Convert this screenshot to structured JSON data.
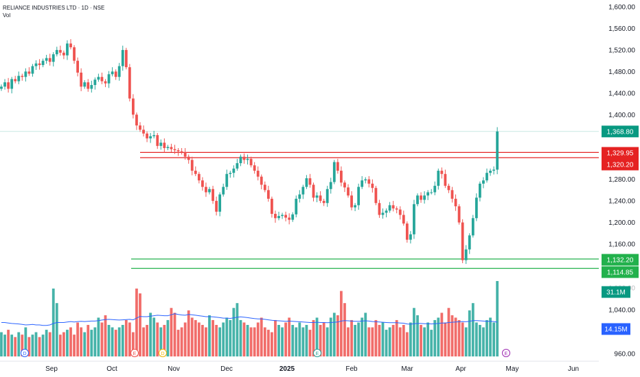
{
  "header": {
    "symbol_line": "RELIANCE INDUSTRIES LTD · 1D · NSE",
    "vol_label": "Vol"
  },
  "colors": {
    "up": "#26a69a",
    "down": "#ef5350",
    "resistance": "#e52222",
    "support": "#22b14c",
    "volume_ma": "#2962ff",
    "last_price": "#089981",
    "grid_text": "#131722"
  },
  "chart_data": {
    "type": "candlestick",
    "y_ticks": [
      "1,600.00",
      "1,560.00",
      "1,520.00",
      "1,480.00",
      "1,440.00",
      "1,400.00",
      "1,280.00",
      "1,240.00",
      "1,200.00",
      "1,160.00",
      "1,040.00",
      "960.00"
    ],
    "y_tick_values": [
      1600,
      1560,
      1520,
      1480,
      1440,
      1400,
      1280,
      1240,
      1200,
      1160,
      1040,
      960
    ],
    "x_labels": [
      "Sep",
      "Oct",
      "Nov",
      "Dec",
      "2025",
      "Feb",
      "Mar",
      "Apr",
      "May",
      "Jun"
    ],
    "price_labels": [
      {
        "text": "1,368.80",
        "value": 1368.8,
        "kind": "last"
      },
      {
        "text": "1,329.95",
        "value": 1329.95,
        "kind": "resistance"
      },
      {
        "text": "1,320.20",
        "value": 1320.2,
        "kind": "resistance"
      },
      {
        "text": "1,132.20",
        "value": 1132.2,
        "kind": "support"
      },
      {
        "text": "1,114.85",
        "value": 1114.85,
        "kind": "support"
      }
    ],
    "volume_labels": [
      {
        "text": "31.1M",
        "kind": "last_volume"
      },
      {
        "text": "14.15M",
        "kind": "volume_ma"
      }
    ],
    "partially_hidden_tick": "1,080.00",
    "event_markers": [
      "D",
      "E",
      "D",
      "E",
      "E",
      "E"
    ],
    "closes": [
      1452,
      1460,
      1448,
      1466,
      1462,
      1472,
      1470,
      1480,
      1476,
      1490,
      1495,
      1492,
      1500,
      1505,
      1498,
      1512,
      1520,
      1515,
      1510,
      1532,
      1525,
      1500,
      1478,
      1452,
      1460,
      1448,
      1455,
      1465,
      1470,
      1462,
      1458,
      1475,
      1480,
      1470,
      1490,
      1520,
      1488,
      1430,
      1400,
      1380,
      1372,
      1365,
      1356,
      1360,
      1362,
      1342,
      1348,
      1338,
      1340,
      1336,
      1334,
      1332,
      1330,
      1322,
      1316,
      1296,
      1290,
      1278,
      1266,
      1256,
      1262,
      1240,
      1220,
      1252,
      1266,
      1290,
      1292,
      1300,
      1310,
      1322,
      1316,
      1318,
      1306,
      1296,
      1285,
      1270,
      1260,
      1244,
      1216,
      1208,
      1212,
      1214,
      1209,
      1205,
      1215,
      1244,
      1252,
      1266,
      1282,
      1270,
      1246,
      1250,
      1240,
      1236,
      1262,
      1275,
      1312,
      1296,
      1274,
      1265,
      1250,
      1228,
      1232,
      1266,
      1278,
      1280,
      1272,
      1264,
      1236,
      1214,
      1218,
      1222,
      1232,
      1226,
      1224,
      1214,
      1198,
      1168,
      1178,
      1234,
      1250,
      1242,
      1250,
      1256,
      1256,
      1268,
      1296,
      1290,
      1268,
      1260,
      1244,
      1230,
      1200,
      1130,
      1150,
      1176,
      1208,
      1246,
      1272,
      1278,
      1292,
      1296,
      1298,
      1368.8
    ],
    "volumes_m": [
      10,
      9,
      11,
      9,
      8,
      10,
      9,
      12,
      8,
      9,
      10,
      8,
      9,
      11,
      10,
      28,
      22,
      9,
      10,
      11,
      12,
      9,
      14,
      12,
      10,
      13,
      11,
      12,
      16,
      14,
      17,
      13,
      12,
      11,
      12,
      13,
      15,
      14,
      10,
      28,
      26,
      12,
      13,
      18,
      16,
      14,
      12,
      13,
      15,
      20,
      18,
      11,
      12,
      14,
      19,
      16,
      15,
      14,
      13,
      12,
      17,
      15,
      13,
      12,
      14,
      16,
      15,
      20,
      22,
      15,
      14,
      13,
      12,
      12,
      14,
      16,
      12,
      11,
      10,
      15,
      13,
      12,
      14,
      16,
      13,
      12,
      14,
      12,
      13,
      11,
      15,
      16,
      13,
      14,
      12,
      16,
      18,
      17,
      27,
      22,
      12,
      15,
      13,
      14,
      16,
      18,
      12,
      12,
      15,
      13,
      14,
      11,
      12,
      13,
      15,
      12,
      13,
      10,
      14,
      20,
      17,
      13,
      12,
      14,
      11,
      15,
      16,
      18,
      14,
      20,
      17,
      16,
      15,
      14,
      12,
      19,
      22,
      14,
      13,
      12,
      15,
      16,
      14,
      31.1
    ],
    "volume_ma_m": [
      14,
      14,
      13.8,
      13.6,
      13.5,
      13.4,
      13.2,
      13,
      13.1,
      13.2,
      13,
      13,
      12.8,
      12.8,
      13,
      13.6,
      14,
      14,
      14,
      14.2,
      14.4,
      14.2,
      14.4,
      14.5,
      14.4,
      14.5,
      14.6,
      14.6,
      14.8,
      15,
      15.2,
      15.3,
      15.2,
      15.1,
      15,
      15.1,
      15.2,
      15.3,
      15.1,
      15.8,
      16.5,
      16.4,
      16.4,
      16.6,
      16.8,
      17,
      16.9,
      16.8,
      16.8,
      17.2,
      17.6,
      17.3,
      17.1,
      17,
      17.3,
      17.2,
      17,
      16.8,
      16.6,
      16.4,
      16.4,
      16.3,
      16.2,
      16,
      15.8,
      15.8,
      15.7,
      15.9,
      16.2,
      16.3,
      16.2,
      16,
      15.8,
      15.6,
      15.5,
      15.5,
      15.3,
      15.1,
      14.9,
      14.8,
      14.7,
      14.6,
      14.5,
      14.6,
      14.5,
      14.4,
      14.3,
      14.2,
      14.1,
      14,
      14,
      14.1,
      14,
      14,
      13.9,
      14,
      14.1,
      14.2,
      14.6,
      14.8,
      14.7,
      14.6,
      14.5,
      14.5,
      14.6,
      14.7,
      14.6,
      14.4,
      14.3,
      14.2,
      14.1,
      14,
      13.9,
      13.9,
      13.9,
      13.8,
      13.7,
      13.4,
      13.3,
      13.5,
      13.6,
      13.6,
      13.5,
      13.5,
      13.4,
      13.5,
      13.6,
      13.8,
      13.8,
      14,
      14.1,
      14.2,
      14.3,
      14.4,
      14.3,
      14.5,
      14.8,
      14.8,
      14.7,
      14.6,
      14.5,
      14.5,
      14.4,
      14.15
    ],
    "resistance_levels": [
      1329.95,
      1320.2
    ],
    "support_levels": [
      1132.2,
      1114.85
    ]
  }
}
